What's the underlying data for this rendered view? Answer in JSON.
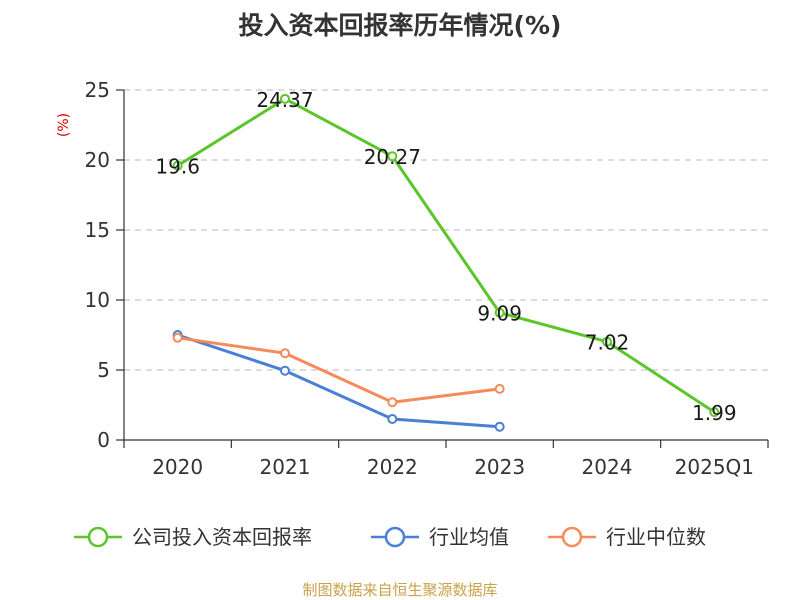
{
  "title": "投入资本回报率历年情况(%)",
  "source": "制图数据来自恒生聚源数据库",
  "chart_data": {
    "type": "line",
    "title": "投入资本回报率历年情况(%)",
    "ylabel": "(%)",
    "xlabel": "",
    "ylim": [
      0,
      25
    ],
    "yticks": [
      "0",
      "5",
      "10",
      "15",
      "20",
      "25"
    ],
    "categories": [
      "2020",
      "2021",
      "2022",
      "2023",
      "2024",
      "2025Q1"
    ],
    "grid": true,
    "legend_position": "bottom",
    "series": [
      {
        "name": "公司投入资本回报率",
        "color": "#5cc52b",
        "values": [
          19.6,
          24.37,
          20.27,
          9.09,
          7.02,
          1.99
        ],
        "labels": [
          "19.6",
          "24.37",
          "20.27",
          "9.09",
          "7.02",
          "1.99"
        ]
      },
      {
        "name": "行业均值",
        "color": "#4a7fd6",
        "values": [
          7.5,
          4.95,
          1.5,
          0.95,
          null,
          null
        ]
      },
      {
        "name": "行业中位数",
        "color": "#f78a5a",
        "values": [
          7.3,
          6.2,
          2.7,
          3.65,
          null,
          null
        ]
      }
    ]
  }
}
